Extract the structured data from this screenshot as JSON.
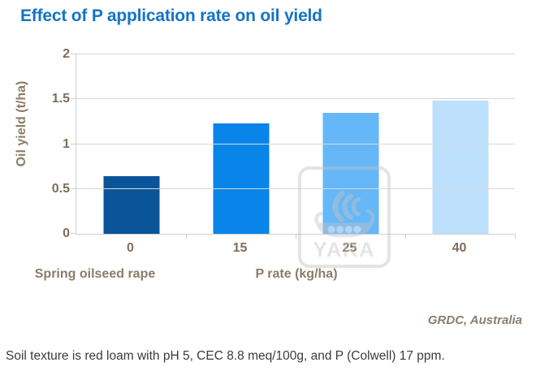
{
  "title": "Effect of P application rate on oil yield",
  "source": "GRDC, Australia",
  "caption": "Soil texture is red loam with pH 5, CEC 8.8 meq/100g, and P (Colwell) 17 ppm.",
  "watermark": {
    "brand": "YARA",
    "icon": "yara-viking-ship-logo"
  },
  "colors": {
    "title_text": "#1573C6",
    "axis_tick_text": "#7D6E5C",
    "axis_title_text": "#8C7B69",
    "source_text": "#8A7D6F",
    "caption_text": "#3B3B3A",
    "gridline": "#D9D9D9",
    "watermark_gray": "#C4C4C4"
  },
  "chart_data": {
    "type": "bar",
    "title": "Effect of P application rate on oil yield",
    "categories": [
      "0",
      "15",
      "25",
      "40"
    ],
    "values": [
      0.64,
      1.23,
      1.35,
      1.48
    ],
    "bar_colors": [
      "#0A5499",
      "#0984E8",
      "#65B7F8",
      "#BCDFFC"
    ],
    "xlabel": "P rate (kg/ha)",
    "x_sublabel_left": "Spring oilseed rape",
    "ylabel": "Oil yield (t/ha)",
    "ylim": [
      0,
      2
    ],
    "yticks": [
      0,
      0.5,
      1,
      1.5,
      2
    ],
    "grid": "horizontal",
    "legend": "none",
    "source": "GRDC, Australia"
  }
}
